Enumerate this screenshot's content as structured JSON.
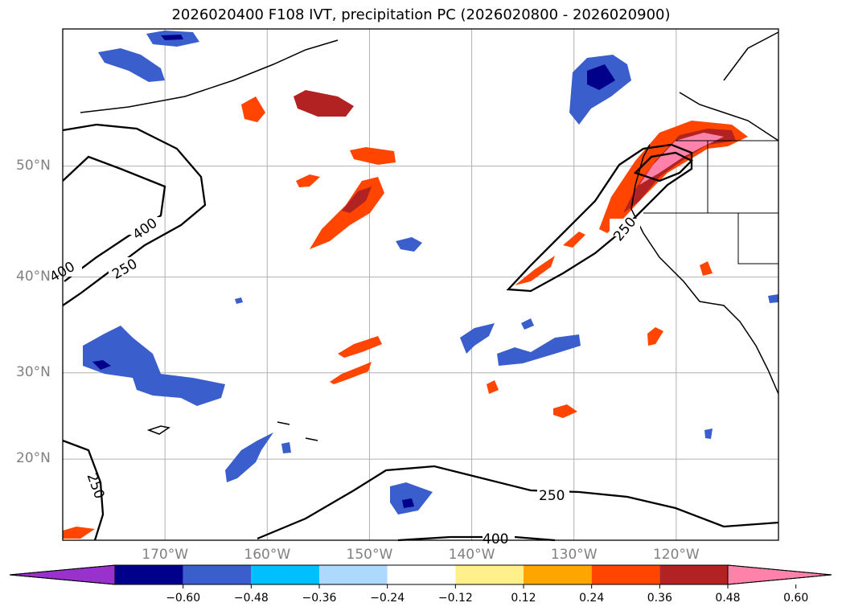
{
  "title": "2026020400 F108 IVT, precipitation PC (2026020800 - 2026020900)",
  "chart_data": {
    "type": "contour-map",
    "title": "2026020400 F108 IVT, precipitation PC (2026020800 - 2026020900)",
    "lat_ticks": [
      {
        "value": 50,
        "label": "50°N"
      },
      {
        "value": 40,
        "label": "40°N"
      },
      {
        "value": 30,
        "label": "30°N"
      },
      {
        "value": 20,
        "label": "20°N"
      }
    ],
    "lon_ticks": [
      {
        "value": -170,
        "label": "170°W"
      },
      {
        "value": -160,
        "label": "160°W"
      },
      {
        "value": -150,
        "label": "150°W"
      },
      {
        "value": -140,
        "label": "140°W"
      },
      {
        "value": -130,
        "label": "130°W"
      },
      {
        "value": -120,
        "label": "120°W"
      }
    ],
    "extent": {
      "lon_min": -180,
      "lon_max": -110,
      "lat_min": 10,
      "lat_max": 60
    },
    "ivt_contour_levels": [
      250,
      400
    ],
    "ivt_contour_labels": [
      "250",
      "400",
      "250",
      "400",
      "250",
      "250",
      "400"
    ],
    "colorbar": {
      "ticks": [
        "−0.60",
        "−0.48",
        "−0.36",
        "−0.24",
        "−0.12",
        "0.12",
        "0.24",
        "0.36",
        "0.48",
        "0.60"
      ],
      "colors": [
        "#9932cc",
        "#00008b",
        "#3a5fcd",
        "#00bfff",
        "#add8ff",
        "#ffffff",
        "#fff08c",
        "#ffa500",
        "#ff4500",
        "#b22222",
        "#ff82ab"
      ]
    }
  }
}
